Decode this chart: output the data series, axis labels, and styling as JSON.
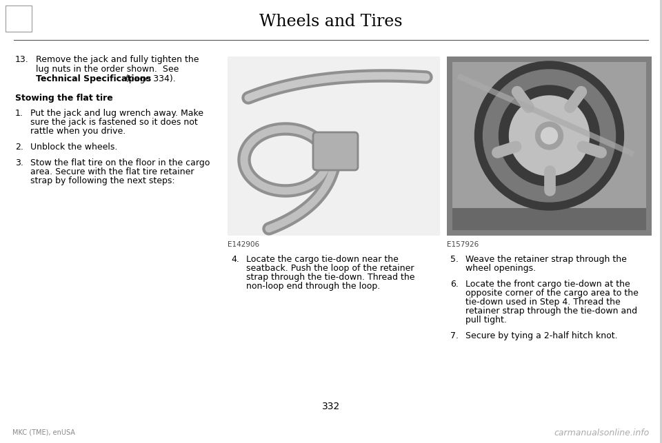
{
  "bg_color": "#ffffff",
  "page_title": "Wheels and Tires",
  "title_fontsize": 17,
  "page_number": "332",
  "footer_left": "MKC (TME), enUSA",
  "footer_right": "carmanualsonline.info",
  "text_fontsize": 9.0,
  "text_color": "#000000",
  "image1_label": "E142906",
  "image2_label": "E157926",
  "item13_text_bold": "Technical Specifications",
  "item13_line1": "13.   Remove the jack and fully tighten the",
  "item13_line2": "lug nuts in the order shown.  See",
  "item13_line3_bold": "Technical Specifications",
  "item13_line3_normal": " (page 334).",
  "stowing_header": "Stowing the flat tire",
  "items_left": [
    [
      "1.",
      "Put the jack and lug wrench away. Make\nsure the jack is fastened so it does not\nrattle when you drive."
    ],
    [
      "2.",
      "Unblock the wheels."
    ],
    [
      "3.",
      "Stow the flat tire on the floor in the cargo\narea. Secure with the flat tire retainer\nstrap by following the next steps:"
    ]
  ],
  "item4_num": "4.",
  "item4_text": "Locate the cargo tie-down near the\nseatback. Push the loop of the retainer\nstrap through the tie-down. Thread the\nnon-loop end through the loop.",
  "items_right": [
    [
      "5.",
      "Weave the retainer strap through the\nwheel openings."
    ],
    [
      "6.",
      "Locate the front cargo tie-down at the\nopposite corner of the cargo area to the\ntie-down used in Step 4. Thread the\nretainer strap through the tie-down and\npull tight."
    ],
    [
      "7.",
      "Secure by tying a 2-half hitch knot."
    ]
  ]
}
